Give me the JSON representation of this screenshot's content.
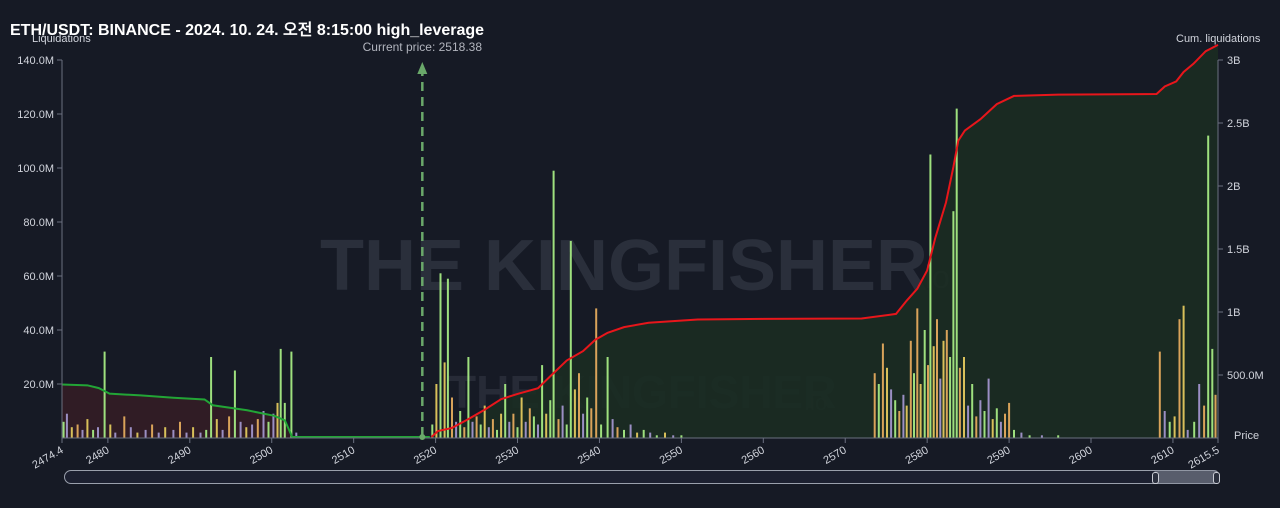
{
  "header": {
    "title": "ETH/USDT: BINANCE - 2024. 10. 24. 오전 8:15:00 high_leverage",
    "left_axis_title": "Liquidations",
    "right_axis_title": "Cum. liquidations",
    "current_price_label": "Current price: 2518.38",
    "price_label": "Price"
  },
  "watermark": {
    "text_main": "THE KINGFISHER",
    "text_suffix": ".io"
  },
  "colors": {
    "background": "#161a25",
    "cum_long": "#22a536",
    "cum_short": "#e8161b",
    "current_price": "#6aa86a",
    "bar_green": "#9ee07e",
    "bar_yellow": "#d8c05a",
    "bar_orange": "#d9a35a",
    "bar_purple": "#9b8fc4"
  },
  "chart_data": {
    "type": "bar",
    "xlim": [
      2474.4,
      2615.5
    ],
    "x_ticks": [
      "2474.4",
      "2480",
      "2490",
      "2500",
      "2510",
      "2520",
      "2530",
      "2540",
      "2550",
      "2560",
      "2570",
      "2580",
      "2590",
      "2600",
      "2610",
      "2615.5"
    ],
    "x_tick_values": [
      2474.4,
      2480,
      2490,
      2500,
      2510,
      2520,
      2530,
      2540,
      2550,
      2560,
      2570,
      2580,
      2590,
      2600,
      2610,
      2615.5
    ],
    "y_left": {
      "label": "Liquidations",
      "ylim": [
        0,
        140
      ],
      "ticks": [
        "140.0M",
        "120.0M",
        "100.0M",
        "80.0M",
        "60.0M",
        "40.0M",
        "20.0M"
      ],
      "tick_values": [
        140,
        120,
        100,
        80,
        60,
        40,
        20
      ]
    },
    "y_right": {
      "label": "Cum. liquidations",
      "ylim": [
        0,
        3000
      ],
      "ticks": [
        "3B",
        "2.5B",
        "2B",
        "1.5B",
        "1B",
        "500.0M"
      ],
      "tick_values": [
        3000,
        2500,
        2000,
        1500,
        1000,
        500
      ]
    },
    "current_price": 2518.38,
    "bars": [
      {
        "x": 2474.6,
        "value": 6,
        "color": "green"
      },
      {
        "x": 2475.0,
        "value": 9,
        "color": "purple"
      },
      {
        "x": 2475.6,
        "value": 4,
        "color": "yellow"
      },
      {
        "x": 2476.3,
        "value": 5,
        "color": "orange"
      },
      {
        "x": 2476.9,
        "value": 3,
        "color": "purple"
      },
      {
        "x": 2477.5,
        "value": 7,
        "color": "yellow"
      },
      {
        "x": 2478.2,
        "value": 3,
        "color": "green"
      },
      {
        "x": 2478.8,
        "value": 4,
        "color": "purple"
      },
      {
        "x": 2479.6,
        "value": 32,
        "color": "green"
      },
      {
        "x": 2480.3,
        "value": 5,
        "color": "yellow"
      },
      {
        "x": 2480.9,
        "value": 2,
        "color": "purple"
      },
      {
        "x": 2482.0,
        "value": 8,
        "color": "orange"
      },
      {
        "x": 2482.8,
        "value": 4,
        "color": "purple"
      },
      {
        "x": 2483.6,
        "value": 2,
        "color": "yellow"
      },
      {
        "x": 2484.6,
        "value": 3,
        "color": "purple"
      },
      {
        "x": 2485.4,
        "value": 5,
        "color": "orange"
      },
      {
        "x": 2486.2,
        "value": 2,
        "color": "purple"
      },
      {
        "x": 2487.0,
        "value": 4,
        "color": "yellow"
      },
      {
        "x": 2488.0,
        "value": 3,
        "color": "purple"
      },
      {
        "x": 2488.8,
        "value": 6,
        "color": "orange"
      },
      {
        "x": 2489.6,
        "value": 2,
        "color": "purple"
      },
      {
        "x": 2490.4,
        "value": 4,
        "color": "yellow"
      },
      {
        "x": 2491.3,
        "value": 2,
        "color": "purple"
      },
      {
        "x": 2492.0,
        "value": 3,
        "color": "green"
      },
      {
        "x": 2492.6,
        "value": 30,
        "color": "green"
      },
      {
        "x": 2493.3,
        "value": 7,
        "color": "yellow"
      },
      {
        "x": 2494.0,
        "value": 3,
        "color": "purple"
      },
      {
        "x": 2494.8,
        "value": 8,
        "color": "orange"
      },
      {
        "x": 2495.5,
        "value": 25,
        "color": "green"
      },
      {
        "x": 2496.2,
        "value": 6,
        "color": "purple"
      },
      {
        "x": 2496.9,
        "value": 4,
        "color": "yellow"
      },
      {
        "x": 2497.6,
        "value": 5,
        "color": "purple"
      },
      {
        "x": 2498.3,
        "value": 7,
        "color": "orange"
      },
      {
        "x": 2499.0,
        "value": 10,
        "color": "purple"
      },
      {
        "x": 2499.6,
        "value": 6,
        "color": "green"
      },
      {
        "x": 2500.2,
        "value": 9,
        "color": "purple"
      },
      {
        "x": 2500.7,
        "value": 13,
        "color": "yellow"
      },
      {
        "x": 2501.1,
        "value": 33,
        "color": "green"
      },
      {
        "x": 2501.6,
        "value": 13,
        "color": "green"
      },
      {
        "x": 2502.4,
        "value": 32,
        "color": "green"
      },
      {
        "x": 2503.0,
        "value": 2,
        "color": "purple"
      },
      {
        "x": 2519.6,
        "value": 5,
        "color": "green"
      },
      {
        "x": 2520.1,
        "value": 20,
        "color": "yellow"
      },
      {
        "x": 2520.6,
        "value": 61,
        "color": "green"
      },
      {
        "x": 2521.1,
        "value": 28,
        "color": "yellow"
      },
      {
        "x": 2521.5,
        "value": 59,
        "color": "green"
      },
      {
        "x": 2522.0,
        "value": 15,
        "color": "orange"
      },
      {
        "x": 2522.5,
        "value": 6,
        "color": "purple"
      },
      {
        "x": 2523.0,
        "value": 10,
        "color": "green"
      },
      {
        "x": 2523.5,
        "value": 4,
        "color": "orange"
      },
      {
        "x": 2524.0,
        "value": 30,
        "color": "green"
      },
      {
        "x": 2524.5,
        "value": 6,
        "color": "purple"
      },
      {
        "x": 2525.0,
        "value": 8,
        "color": "orange"
      },
      {
        "x": 2525.5,
        "value": 5,
        "color": "green"
      },
      {
        "x": 2526.0,
        "value": 12,
        "color": "yellow"
      },
      {
        "x": 2526.5,
        "value": 4,
        "color": "purple"
      },
      {
        "x": 2527.0,
        "value": 7,
        "color": "orange"
      },
      {
        "x": 2527.5,
        "value": 3,
        "color": "green"
      },
      {
        "x": 2528.0,
        "value": 9,
        "color": "yellow"
      },
      {
        "x": 2528.5,
        "value": 20,
        "color": "green"
      },
      {
        "x": 2529.0,
        "value": 6,
        "color": "purple"
      },
      {
        "x": 2529.5,
        "value": 9,
        "color": "orange"
      },
      {
        "x": 2530.0,
        "value": 4,
        "color": "green"
      },
      {
        "x": 2530.5,
        "value": 15,
        "color": "yellow"
      },
      {
        "x": 2531.0,
        "value": 6,
        "color": "purple"
      },
      {
        "x": 2531.5,
        "value": 11,
        "color": "orange"
      },
      {
        "x": 2532.0,
        "value": 8,
        "color": "green"
      },
      {
        "x": 2532.5,
        "value": 5,
        "color": "purple"
      },
      {
        "x": 2533.0,
        "value": 27,
        "color": "green"
      },
      {
        "x": 2533.5,
        "value": 9,
        "color": "yellow"
      },
      {
        "x": 2534.0,
        "value": 14,
        "color": "green"
      },
      {
        "x": 2534.4,
        "value": 99,
        "color": "green"
      },
      {
        "x": 2535.0,
        "value": 7,
        "color": "orange"
      },
      {
        "x": 2535.5,
        "value": 12,
        "color": "purple"
      },
      {
        "x": 2536.0,
        "value": 5,
        "color": "green"
      },
      {
        "x": 2536.5,
        "value": 73,
        "color": "green"
      },
      {
        "x": 2537.0,
        "value": 18,
        "color": "yellow"
      },
      {
        "x": 2537.5,
        "value": 24,
        "color": "orange"
      },
      {
        "x": 2538.0,
        "value": 9,
        "color": "purple"
      },
      {
        "x": 2538.5,
        "value": 15,
        "color": "green"
      },
      {
        "x": 2539.0,
        "value": 11,
        "color": "orange"
      },
      {
        "x": 2539.6,
        "value": 48,
        "color": "orange"
      },
      {
        "x": 2540.2,
        "value": 5,
        "color": "green"
      },
      {
        "x": 2541.0,
        "value": 30,
        "color": "green"
      },
      {
        "x": 2541.6,
        "value": 7,
        "color": "purple"
      },
      {
        "x": 2542.2,
        "value": 4,
        "color": "orange"
      },
      {
        "x": 2543.0,
        "value": 3,
        "color": "green"
      },
      {
        "x": 2543.8,
        "value": 5,
        "color": "purple"
      },
      {
        "x": 2544.6,
        "value": 2,
        "color": "yellow"
      },
      {
        "x": 2545.4,
        "value": 3,
        "color": "green"
      },
      {
        "x": 2546.2,
        "value": 2,
        "color": "purple"
      },
      {
        "x": 2547.0,
        "value": 1,
        "color": "green"
      },
      {
        "x": 2548.0,
        "value": 2,
        "color": "yellow"
      },
      {
        "x": 2549.0,
        "value": 1,
        "color": "purple"
      },
      {
        "x": 2550.0,
        "value": 1,
        "color": "green"
      },
      {
        "x": 2573.6,
        "value": 24,
        "color": "orange"
      },
      {
        "x": 2574.1,
        "value": 20,
        "color": "green"
      },
      {
        "x": 2574.6,
        "value": 35,
        "color": "orange"
      },
      {
        "x": 2575.1,
        "value": 26,
        "color": "yellow"
      },
      {
        "x": 2575.6,
        "value": 18,
        "color": "purple"
      },
      {
        "x": 2576.1,
        "value": 14,
        "color": "green"
      },
      {
        "x": 2576.6,
        "value": 10,
        "color": "orange"
      },
      {
        "x": 2577.1,
        "value": 16,
        "color": "purple"
      },
      {
        "x": 2577.5,
        "value": 12,
        "color": "yellow"
      },
      {
        "x": 2578.0,
        "value": 36,
        "color": "orange"
      },
      {
        "x": 2578.4,
        "value": 24,
        "color": "green"
      },
      {
        "x": 2578.8,
        "value": 48,
        "color": "orange"
      },
      {
        "x": 2579.2,
        "value": 20,
        "color": "yellow"
      },
      {
        "x": 2579.7,
        "value": 40,
        "color": "green"
      },
      {
        "x": 2580.1,
        "value": 27,
        "color": "orange"
      },
      {
        "x": 2580.4,
        "value": 105,
        "color": "green"
      },
      {
        "x": 2580.8,
        "value": 34,
        "color": "yellow"
      },
      {
        "x": 2581.2,
        "value": 44,
        "color": "orange"
      },
      {
        "x": 2581.6,
        "value": 22,
        "color": "purple"
      },
      {
        "x": 2582.0,
        "value": 36,
        "color": "yellow"
      },
      {
        "x": 2582.4,
        "value": 40,
        "color": "orange"
      },
      {
        "x": 2582.8,
        "value": 30,
        "color": "green"
      },
      {
        "x": 2583.2,
        "value": 84,
        "color": "green"
      },
      {
        "x": 2583.6,
        "value": 122,
        "color": "green"
      },
      {
        "x": 2584.0,
        "value": 26,
        "color": "orange"
      },
      {
        "x": 2584.5,
        "value": 30,
        "color": "yellow"
      },
      {
        "x": 2585.0,
        "value": 12,
        "color": "purple"
      },
      {
        "x": 2585.5,
        "value": 20,
        "color": "green"
      },
      {
        "x": 2586.0,
        "value": 8,
        "color": "orange"
      },
      {
        "x": 2586.5,
        "value": 14,
        "color": "purple"
      },
      {
        "x": 2587.0,
        "value": 10,
        "color": "green"
      },
      {
        "x": 2587.5,
        "value": 22,
        "color": "purple"
      },
      {
        "x": 2588.0,
        "value": 7,
        "color": "yellow"
      },
      {
        "x": 2588.5,
        "value": 11,
        "color": "green"
      },
      {
        "x": 2589.0,
        "value": 6,
        "color": "purple"
      },
      {
        "x": 2589.5,
        "value": 9,
        "color": "orange"
      },
      {
        "x": 2590.0,
        "value": 13,
        "color": "orange"
      },
      {
        "x": 2590.6,
        "value": 3,
        "color": "green"
      },
      {
        "x": 2591.5,
        "value": 2,
        "color": "purple"
      },
      {
        "x": 2592.5,
        "value": 1,
        "color": "green"
      },
      {
        "x": 2594.0,
        "value": 1,
        "color": "purple"
      },
      {
        "x": 2596.0,
        "value": 1,
        "color": "green"
      },
      {
        "x": 2608.4,
        "value": 32,
        "color": "orange"
      },
      {
        "x": 2609.0,
        "value": 10,
        "color": "purple"
      },
      {
        "x": 2609.6,
        "value": 6,
        "color": "green"
      },
      {
        "x": 2610.2,
        "value": 8,
        "color": "yellow"
      },
      {
        "x": 2610.8,
        "value": 44,
        "color": "orange"
      },
      {
        "x": 2611.3,
        "value": 49,
        "color": "yellow"
      },
      {
        "x": 2611.8,
        "value": 3,
        "color": "purple"
      },
      {
        "x": 2612.6,
        "value": 6,
        "color": "green"
      },
      {
        "x": 2613.2,
        "value": 20,
        "color": "purple"
      },
      {
        "x": 2613.8,
        "value": 12,
        "color": "orange"
      },
      {
        "x": 2614.3,
        "value": 112,
        "color": "green"
      },
      {
        "x": 2614.8,
        "value": 33,
        "color": "green"
      },
      {
        "x": 2615.2,
        "value": 16,
        "color": "orange"
      }
    ],
    "cum_long": [
      [
        2474.4,
        425
      ],
      [
        2477.5,
        418
      ],
      [
        2478.9,
        396
      ],
      [
        2480.2,
        352
      ],
      [
        2484.0,
        338
      ],
      [
        2488.0,
        319
      ],
      [
        2491.8,
        306
      ],
      [
        2492.8,
        260
      ],
      [
        2497.0,
        220
      ],
      [
        2500.3,
        176
      ],
      [
        2501.6,
        140
      ],
      [
        2502.5,
        8
      ],
      [
        2519.3,
        8
      ]
    ],
    "cum_short": [
      [
        2519.5,
        8
      ],
      [
        2520.3,
        55
      ],
      [
        2522.0,
        80
      ],
      [
        2524.0,
        150
      ],
      [
        2526.0,
        225
      ],
      [
        2528.0,
        308
      ],
      [
        2530.0,
        350
      ],
      [
        2532.5,
        395
      ],
      [
        2534.0,
        490
      ],
      [
        2536.0,
        615
      ],
      [
        2538.0,
        690
      ],
      [
        2539.5,
        780
      ],
      [
        2541.0,
        835
      ],
      [
        2543.0,
        880
      ],
      [
        2546.0,
        915
      ],
      [
        2552.0,
        940
      ],
      [
        2560.0,
        945
      ],
      [
        2572.0,
        948
      ],
      [
        2576.2,
        985
      ],
      [
        2577.5,
        1090
      ],
      [
        2578.8,
        1185
      ],
      [
        2580.0,
        1330
      ],
      [
        2581.0,
        1590
      ],
      [
        2582.3,
        1870
      ],
      [
        2583.2,
        2150
      ],
      [
        2583.8,
        2360
      ],
      [
        2584.6,
        2440
      ],
      [
        2586.5,
        2530
      ],
      [
        2588.5,
        2650
      ],
      [
        2590.6,
        2715
      ],
      [
        2596.0,
        2725
      ],
      [
        2608.0,
        2730
      ],
      [
        2609.0,
        2790
      ],
      [
        2610.4,
        2830
      ],
      [
        2611.3,
        2905
      ],
      [
        2612.5,
        2970
      ],
      [
        2614.0,
        3070
      ],
      [
        2615.5,
        3120
      ]
    ]
  }
}
